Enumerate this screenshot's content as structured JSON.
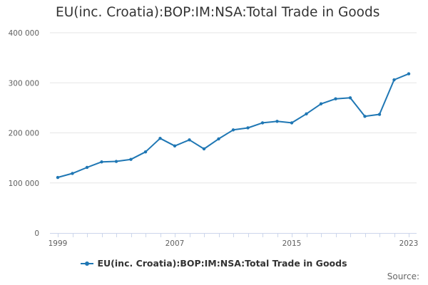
{
  "chart_data": {
    "type": "line",
    "title": "EU(inc. Croatia):BOP:IM:NSA:Total Trade in Goods",
    "xlabel": "",
    "ylabel": "",
    "x": [
      1999,
      2000,
      2001,
      2002,
      2003,
      2004,
      2005,
      2006,
      2007,
      2008,
      2009,
      2010,
      2011,
      2012,
      2013,
      2014,
      2015,
      2016,
      2017,
      2018,
      2019,
      2020,
      2021,
      2022,
      2023
    ],
    "series": [
      {
        "name": "EU(inc. Croatia):BOP:IM:NSA:Total Trade in Goods",
        "values": [
          111000,
          119000,
          131000,
          142000,
          143000,
          147000,
          162000,
          189000,
          174000,
          186000,
          168000,
          188000,
          206000,
          210000,
          220000,
          223000,
          220000,
          238000,
          258000,
          268000,
          270000,
          233000,
          237000,
          306000,
          318000
        ]
      }
    ],
    "ylim": [
      0,
      400000
    ],
    "yticks": [
      0,
      100000,
      200000,
      300000,
      400000
    ],
    "ytick_labels": [
      "0",
      "100 000",
      "200 000",
      "300 000",
      "400 000"
    ],
    "xtick_labels": [
      "1999",
      "2007",
      "2015",
      "2023"
    ],
    "grid": true,
    "legend_position": "bottom",
    "color": "#1f77b4"
  },
  "credits": "Source:"
}
